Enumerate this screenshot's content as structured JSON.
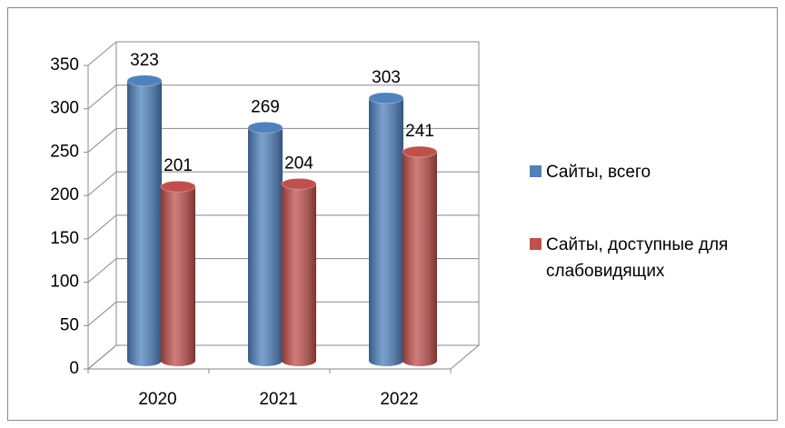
{
  "chart_data": {
    "type": "bar3d",
    "categories": [
      "2020",
      "2021",
      "2022"
    ],
    "series": [
      {
        "name": "Сайты, всего",
        "color": "#4f81bd",
        "values": [
          323,
          269,
          303
        ]
      },
      {
        "name": "Сайты, доступные для слабовидящих",
        "color": "#c0504d",
        "values": [
          201,
          204,
          241
        ]
      }
    ],
    "ylim": [
      0,
      350
    ],
    "yticks": [
      0,
      50,
      100,
      150,
      200,
      250,
      300,
      350
    ],
    "grid": true,
    "legend": "right"
  }
}
